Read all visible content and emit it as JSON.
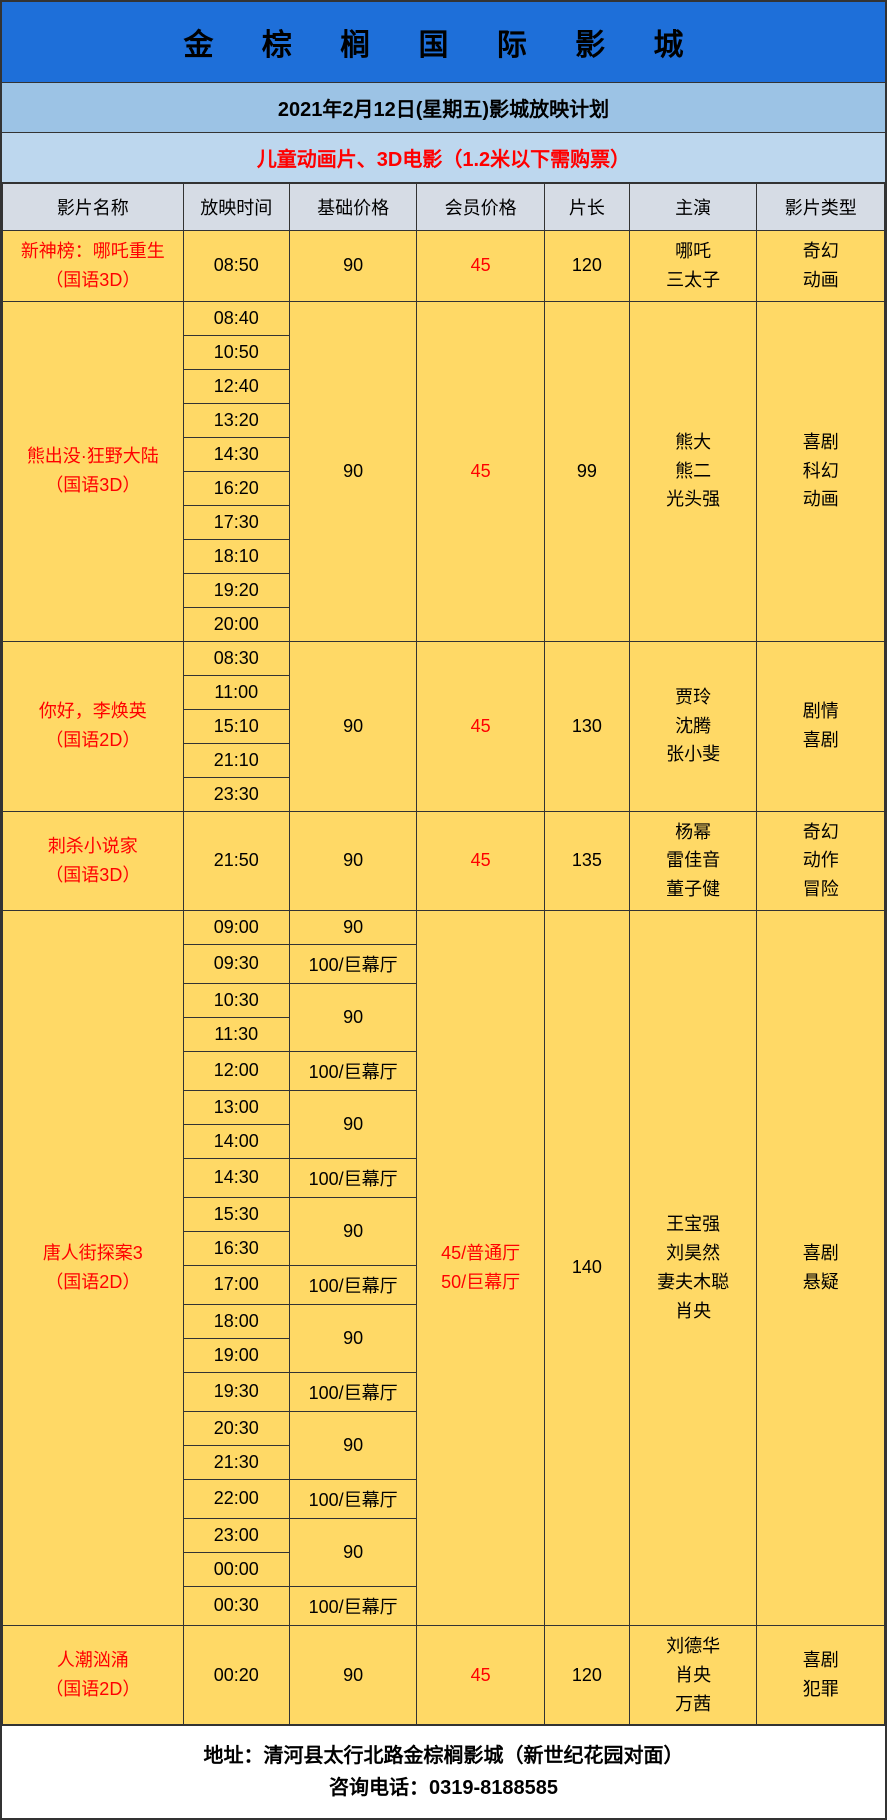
{
  "header": {
    "title": "金 棕 榈 国 际 影 城",
    "date_line": "2021年2月12日(星期五)影城放映计划",
    "notice": "儿童动画片、3D电影（1.2米以下需购票）"
  },
  "colors": {
    "title_bg": "#1e6fd9",
    "date_bg": "#9cc3e5",
    "notice_bg": "#bdd7ee",
    "notice_text": "#ff0000",
    "header_bg": "#d6dce5",
    "cell_bg": "#ffd966",
    "red": "#ff0000",
    "border": "#333333"
  },
  "columns": {
    "name": "影片名称",
    "time": "放映时间",
    "base_price": "基础价格",
    "member_price": "会员价格",
    "duration": "片长",
    "actors": "主演",
    "type": "影片类型"
  },
  "movies": [
    {
      "name_l1": "新神榜：哪吒重生",
      "name_l2": "（国语3D）",
      "times": [
        "08:50"
      ],
      "base_prices": [
        "90"
      ],
      "member_price": "45",
      "duration": "120",
      "actors": "哪吒\n三太子",
      "type": "奇幻\n动画"
    },
    {
      "name_l1": "熊出没·狂野大陆",
      "name_l2": "（国语3D）",
      "times": [
        "08:40",
        "10:50",
        "12:40",
        "13:20",
        "14:30",
        "16:20",
        "17:30",
        "18:10",
        "19:20",
        "20:00"
      ],
      "base_prices": [
        "90"
      ],
      "member_price": "45",
      "duration": "99",
      "actors": "熊大\n熊二\n光头强",
      "type": "喜剧\n科幻\n动画"
    },
    {
      "name_l1": "你好，李焕英",
      "name_l2": "（国语2D）",
      "times": [
        "08:30",
        "11:00",
        "15:10",
        "21:10",
        "23:30"
      ],
      "base_prices": [
        "90"
      ],
      "member_price": "45",
      "duration": "130",
      "actors": "贾玲\n沈腾\n张小斐",
      "type": "剧情\n喜剧"
    },
    {
      "name_l1": "刺杀小说家",
      "name_l2": "（国语3D）",
      "times": [
        "21:50"
      ],
      "base_prices": [
        "90"
      ],
      "member_price": "45",
      "duration": "135",
      "actors": "杨幂\n雷佳音\n董子健",
      "type": "奇幻\n动作\n冒险"
    },
    {
      "name_l1": "唐人街探案3",
      "name_l2": "（国语2D）",
      "times": [
        "09:00",
        "09:30",
        "10:30",
        "11:30",
        "12:00",
        "13:00",
        "14:00",
        "14:30",
        "15:30",
        "16:30",
        "17:00",
        "18:00",
        "19:00",
        "19:30",
        "20:30",
        "21:30",
        "22:00",
        "23:00",
        "00:00",
        "00:30"
      ],
      "price_rows": [
        {
          "span": 1,
          "label": "90"
        },
        {
          "span": 1,
          "label": "100/巨幕厅"
        },
        {
          "span": 2,
          "label": "90"
        },
        {
          "span": 1,
          "label": "100/巨幕厅"
        },
        {
          "span": 2,
          "label": "90"
        },
        {
          "span": 1,
          "label": "100/巨幕厅"
        },
        {
          "span": 2,
          "label": "90"
        },
        {
          "span": 1,
          "label": "100/巨幕厅"
        },
        {
          "span": 2,
          "label": "90"
        },
        {
          "span": 1,
          "label": "100/巨幕厅"
        },
        {
          "span": 2,
          "label": "90"
        },
        {
          "span": 1,
          "label": "100/巨幕厅"
        },
        {
          "span": 2,
          "label": "90"
        },
        {
          "span": 1,
          "label": "100/巨幕厅"
        }
      ],
      "member_price": "45/普通厅\n50/巨幕厅",
      "duration": "140",
      "actors": "王宝强\n刘昊然\n妻夫木聪\n肖央",
      "type": "喜剧\n悬疑"
    },
    {
      "name_l1": "人潮汹涌",
      "name_l2": "（国语2D）",
      "times": [
        "00:20"
      ],
      "base_prices": [
        "90"
      ],
      "member_price": "45",
      "duration": "120",
      "actors": "刘德华\n肖央\n万茜",
      "type": "喜剧\n犯罪"
    }
  ],
  "footer": {
    "line1": "地址：清河县太行北路金棕榈影城（新世纪花园对面）",
    "line2": "咨询电话：0319-8188585"
  }
}
